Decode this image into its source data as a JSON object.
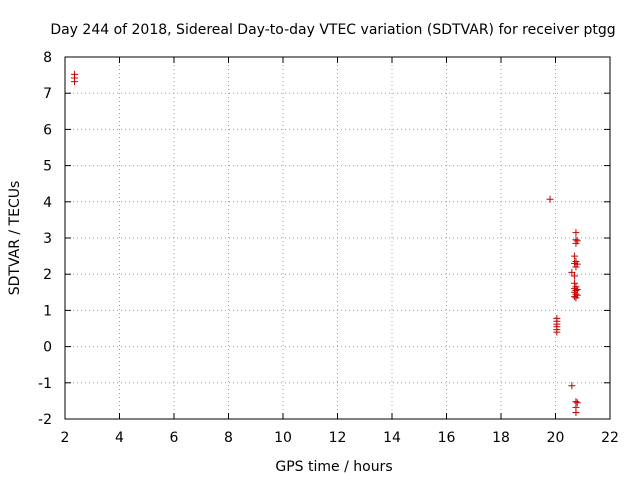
{
  "chart_data": {
    "type": "scatter",
    "title": "Day 244 of 2018, Sidereal Day-to-day VTEC variation (SDTVAR) for receiver ptgg",
    "xlabel": "GPS time / hours",
    "ylabel": "SDTVAR / TECUs",
    "xlim": [
      2,
      22
    ],
    "ylim": [
      -2,
      8
    ],
    "xticks": [
      "2",
      "4",
      "6",
      "8",
      "10",
      "12",
      "14",
      "16",
      "18",
      "20",
      "22"
    ],
    "yticks": [
      "-2",
      "-1",
      "0",
      "1",
      "2",
      "3",
      "4",
      "5",
      "6",
      "7",
      "8"
    ],
    "grid": true,
    "marker": "+",
    "point_color": "#cc0000",
    "series": [
      {
        "points": [
          [
            2.35,
            7.52
          ],
          [
            2.35,
            7.42
          ],
          [
            2.35,
            7.32
          ],
          [
            19.8,
            4.07
          ],
          [
            20.05,
            0.78
          ],
          [
            20.05,
            0.7
          ],
          [
            20.05,
            0.62
          ],
          [
            20.05,
            0.55
          ],
          [
            20.05,
            0.47
          ],
          [
            20.05,
            0.4
          ],
          [
            20.6,
            2.05
          ],
          [
            20.6,
            -1.08
          ],
          [
            20.7,
            2.5
          ],
          [
            20.7,
            2.3
          ],
          [
            20.7,
            1.95
          ],
          [
            20.7,
            1.75
          ],
          [
            20.7,
            1.6
          ],
          [
            20.7,
            1.5
          ],
          [
            20.7,
            1.38
          ],
          [
            20.75,
            3.15
          ],
          [
            20.75,
            2.95
          ],
          [
            20.75,
            2.85
          ],
          [
            20.75,
            2.35
          ],
          [
            20.75,
            2.2
          ],
          [
            20.75,
            1.65
          ],
          [
            20.75,
            1.55
          ],
          [
            20.75,
            1.45
          ],
          [
            20.75,
            1.35
          ],
          [
            20.75,
            -1.52
          ],
          [
            20.75,
            -1.68
          ],
          [
            20.75,
            -1.82
          ],
          [
            20.8,
            2.92
          ],
          [
            20.8,
            2.28
          ],
          [
            20.8,
            1.58
          ],
          [
            20.8,
            1.42
          ],
          [
            20.8,
            -1.55
          ]
        ]
      }
    ]
  }
}
